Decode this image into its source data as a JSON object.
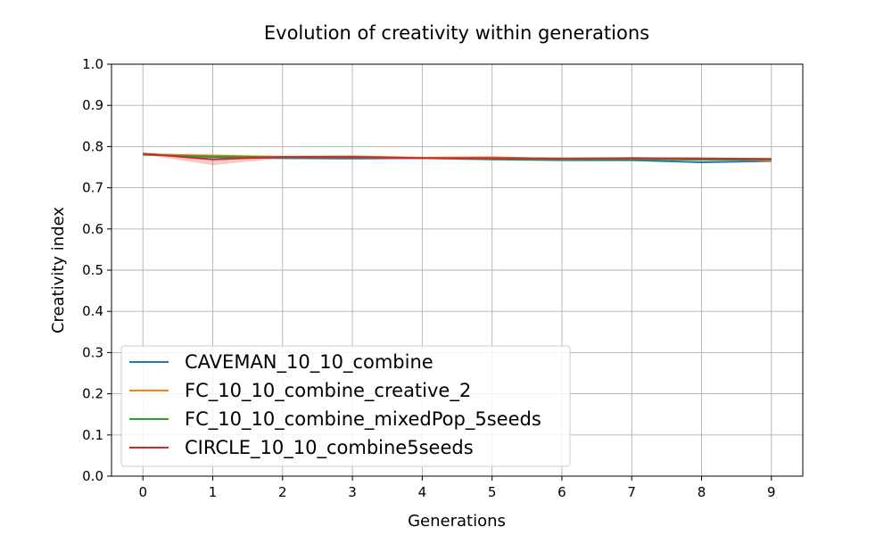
{
  "chart_data": {
    "type": "line",
    "title": "Evolution of creativity within generations",
    "xlabel": "Generations",
    "ylabel": "Creativity index",
    "xlim": [
      -0.45,
      9.45
    ],
    "ylim": [
      0.0,
      1.0
    ],
    "xticks": [
      "0",
      "1",
      "2",
      "3",
      "4",
      "5",
      "6",
      "7",
      "8",
      "9"
    ],
    "yticks": [
      "0.0",
      "0.1",
      "0.2",
      "0.3",
      "0.4",
      "0.5",
      "0.6",
      "0.7",
      "0.8",
      "0.9",
      "1.0"
    ],
    "grid": true,
    "legend_position": "lower-left",
    "x": [
      0,
      1,
      2,
      3,
      4,
      5,
      6,
      7,
      8,
      9
    ],
    "series": [
      {
        "name": "CAVEMAN_10_10_combine",
        "color": "#1f77b4",
        "values": [
          0.782,
          0.775,
          0.772,
          0.771,
          0.772,
          0.769,
          0.767,
          0.767,
          0.762,
          0.765
        ],
        "band": [
          [
            0.78,
            0.784
          ],
          [
            0.772,
            0.778
          ],
          [
            0.77,
            0.774
          ],
          [
            0.769,
            0.773
          ],
          [
            0.77,
            0.774
          ],
          [
            0.767,
            0.771
          ],
          [
            0.765,
            0.769
          ],
          [
            0.765,
            0.769
          ],
          [
            0.76,
            0.764
          ],
          [
            0.763,
            0.767
          ]
        ]
      },
      {
        "name": "FC_10_10_combine_creative_2",
        "color": "#ff7f0e",
        "values": [
          0.781,
          0.778,
          0.775,
          0.776,
          0.773,
          0.774,
          0.77,
          0.772,
          0.771,
          0.766
        ],
        "band": [
          [
            0.779,
            0.783
          ],
          [
            0.774,
            0.782
          ],
          [
            0.772,
            0.778
          ],
          [
            0.773,
            0.779
          ],
          [
            0.771,
            0.775
          ],
          [
            0.772,
            0.776
          ],
          [
            0.768,
            0.772
          ],
          [
            0.77,
            0.774
          ],
          [
            0.769,
            0.773
          ],
          [
            0.764,
            0.768
          ]
        ]
      },
      {
        "name": "FC_10_10_combine_mixedPop_5seeds",
        "color": "#2ca02c",
        "values": [
          0.78,
          0.776,
          0.774,
          0.774,
          0.772,
          0.771,
          0.769,
          0.77,
          0.768,
          0.768
        ],
        "band": [
          [
            0.778,
            0.782
          ],
          [
            0.773,
            0.779
          ],
          [
            0.772,
            0.776
          ],
          [
            0.772,
            0.776
          ],
          [
            0.77,
            0.774
          ],
          [
            0.769,
            0.773
          ],
          [
            0.767,
            0.771
          ],
          [
            0.768,
            0.772
          ],
          [
            0.766,
            0.77
          ],
          [
            0.766,
            0.77
          ]
        ]
      },
      {
        "name": "CIRCLE_10_10_combine5seeds",
        "color": "#d62728",
        "values": [
          0.783,
          0.769,
          0.775,
          0.775,
          0.772,
          0.772,
          0.771,
          0.772,
          0.771,
          0.77
        ],
        "band": [
          [
            0.781,
            0.785
          ],
          [
            0.755,
            0.778
          ],
          [
            0.772,
            0.778
          ],
          [
            0.772,
            0.778
          ],
          [
            0.77,
            0.774
          ],
          [
            0.77,
            0.774
          ],
          [
            0.769,
            0.773
          ],
          [
            0.77,
            0.774
          ],
          [
            0.769,
            0.773
          ],
          [
            0.768,
            0.772
          ]
        ]
      }
    ]
  }
}
